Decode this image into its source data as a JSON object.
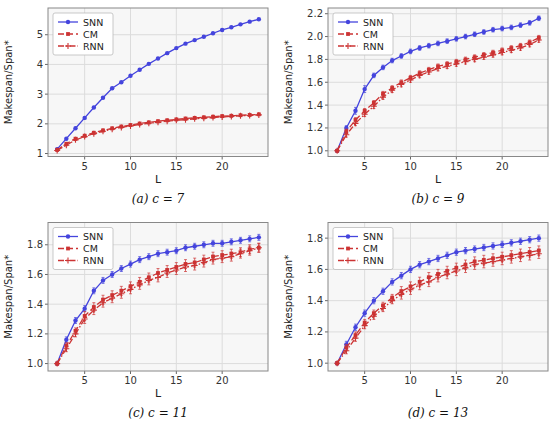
{
  "chart_data": [
    {
      "type": "line",
      "title": "(a)  c = 7",
      "xlabel": "L",
      "ylabel": "Makespan/Span*",
      "x": [
        2,
        3,
        4,
        5,
        6,
        7,
        8,
        9,
        10,
        11,
        12,
        13,
        14,
        15,
        16,
        17,
        18,
        19,
        20,
        21,
        22,
        23,
        24
      ],
      "xlim": [
        1,
        25
      ],
      "xticks": [
        5,
        10,
        15,
        20
      ],
      "ylim": [
        0.9,
        5.9
      ],
      "yticks": [
        1,
        2,
        3,
        4,
        5
      ],
      "grid": true,
      "legend": "upper-left",
      "series": [
        {
          "name": "SNN",
          "color": "#4444dd",
          "marker": "circle",
          "line_style": "solid",
          "values": [
            1.15,
            1.5,
            1.85,
            2.2,
            2.55,
            2.88,
            3.2,
            3.4,
            3.62,
            3.82,
            4.02,
            4.2,
            4.38,
            4.55,
            4.7,
            4.82,
            4.93,
            5.05,
            5.16,
            5.25,
            5.35,
            5.44,
            5.52
          ],
          "errors": [
            0.02,
            0.02,
            0.02,
            0.02,
            0.02,
            0.02,
            0.02,
            0.02,
            0.02,
            0.02,
            0.02,
            0.02,
            0.02,
            0.02,
            0.02,
            0.02,
            0.02,
            0.02,
            0.02,
            0.02,
            0.02,
            0.02,
            0.02
          ]
        },
        {
          "name": "CM",
          "color": "#cc3333",
          "marker": "square",
          "line_style": "dashed",
          "values": [
            1.12,
            1.33,
            1.5,
            1.6,
            1.7,
            1.78,
            1.85,
            1.91,
            1.96,
            2.01,
            2.05,
            2.09,
            2.12,
            2.15,
            2.18,
            2.2,
            2.22,
            2.24,
            2.26,
            2.27,
            2.29,
            2.3,
            2.32
          ],
          "errors": [
            0.02,
            0.02,
            0.02,
            0.02,
            0.02,
            0.02,
            0.02,
            0.02,
            0.02,
            0.02,
            0.02,
            0.02,
            0.02,
            0.02,
            0.02,
            0.02,
            0.02,
            0.02,
            0.02,
            0.02,
            0.02,
            0.02,
            0.02
          ]
        },
        {
          "name": "RNN",
          "color": "#cc3333",
          "marker": "plus",
          "line_style": "dashdot",
          "values": [
            1.1,
            1.28,
            1.46,
            1.57,
            1.67,
            1.75,
            1.82,
            1.88,
            1.93,
            1.98,
            2.02,
            2.05,
            2.09,
            2.12,
            2.14,
            2.17,
            2.19,
            2.21,
            2.23,
            2.25,
            2.27,
            2.28,
            2.3
          ],
          "errors": [
            0.02,
            0.02,
            0.02,
            0.02,
            0.02,
            0.02,
            0.02,
            0.02,
            0.02,
            0.02,
            0.02,
            0.02,
            0.02,
            0.02,
            0.02,
            0.02,
            0.02,
            0.02,
            0.02,
            0.02,
            0.02,
            0.02,
            0.02
          ]
        }
      ]
    },
    {
      "type": "line",
      "title": "(b)  c = 9",
      "xlabel": "L",
      "ylabel": "Makespan/Span*",
      "x": [
        2,
        3,
        4,
        5,
        6,
        7,
        8,
        9,
        10,
        11,
        12,
        13,
        14,
        15,
        16,
        17,
        18,
        19,
        20,
        21,
        22,
        23,
        24
      ],
      "xlim": [
        1,
        25
      ],
      "xticks": [
        5,
        10,
        15,
        20
      ],
      "ylim": [
        0.95,
        2.25
      ],
      "yticks": [
        {
          "value": 1.0,
          "label": "1.0"
        },
        1.2,
        1.4,
        1.6,
        1.8,
        {
          "value": 2.0,
          "label": "2.0"
        },
        2.2
      ],
      "grid": true,
      "legend": "upper-left",
      "series": [
        {
          "name": "SNN",
          "color": "#4444dd",
          "marker": "circle",
          "line_style": "solid",
          "values": [
            1.0,
            1.2,
            1.35,
            1.54,
            1.66,
            1.73,
            1.79,
            1.83,
            1.87,
            1.9,
            1.92,
            1.94,
            1.96,
            1.98,
            2.0,
            2.02,
            2.04,
            2.06,
            2.07,
            2.08,
            2.1,
            2.12,
            2.16
          ],
          "errors": [
            0.01,
            0.02,
            0.03,
            0.03,
            0.02,
            0.02,
            0.02,
            0.02,
            0.02,
            0.02,
            0.02,
            0.02,
            0.02,
            0.02,
            0.02,
            0.02,
            0.02,
            0.02,
            0.02,
            0.02,
            0.02,
            0.02,
            0.02
          ]
        },
        {
          "name": "CM",
          "color": "#cc3333",
          "marker": "square",
          "line_style": "dashed",
          "values": [
            1.0,
            1.17,
            1.27,
            1.35,
            1.42,
            1.5,
            1.55,
            1.6,
            1.64,
            1.68,
            1.71,
            1.74,
            1.76,
            1.78,
            1.8,
            1.82,
            1.84,
            1.86,
            1.88,
            1.9,
            1.92,
            1.95,
            1.99
          ],
          "errors": [
            0.01,
            0.02,
            0.02,
            0.02,
            0.02,
            0.02,
            0.02,
            0.02,
            0.02,
            0.02,
            0.02,
            0.02,
            0.02,
            0.02,
            0.02,
            0.02,
            0.02,
            0.02,
            0.02,
            0.02,
            0.02,
            0.02,
            0.02
          ]
        },
        {
          "name": "RNN",
          "color": "#cc3333",
          "marker": "plus",
          "line_style": "dashdot",
          "values": [
            1.0,
            1.14,
            1.24,
            1.32,
            1.39,
            1.47,
            1.53,
            1.58,
            1.62,
            1.66,
            1.69,
            1.72,
            1.74,
            1.76,
            1.78,
            1.8,
            1.82,
            1.84,
            1.86,
            1.88,
            1.9,
            1.93,
            1.97
          ],
          "errors": [
            0.01,
            0.02,
            0.02,
            0.02,
            0.02,
            0.02,
            0.02,
            0.02,
            0.02,
            0.02,
            0.02,
            0.02,
            0.02,
            0.02,
            0.02,
            0.02,
            0.02,
            0.02,
            0.02,
            0.02,
            0.02,
            0.02,
            0.02
          ]
        }
      ]
    },
    {
      "type": "line",
      "title": "(c)  c = 11",
      "xlabel": "L",
      "ylabel": "Makespan/Span*",
      "x": [
        2,
        3,
        4,
        5,
        6,
        7,
        8,
        9,
        10,
        11,
        12,
        13,
        14,
        15,
        16,
        17,
        18,
        19,
        20,
        21,
        22,
        23,
        24
      ],
      "xlim": [
        1,
        25
      ],
      "xticks": [
        5,
        10,
        15,
        20
      ],
      "ylim": [
        0.95,
        1.95
      ],
      "yticks": [
        {
          "value": 1.0,
          "label": "1.0"
        },
        1.2,
        1.4,
        1.6,
        1.8
      ],
      "grid": true,
      "legend": "upper-left",
      "series": [
        {
          "name": "SNN",
          "color": "#4444dd",
          "marker": "circle",
          "line_style": "solid",
          "values": [
            1.0,
            1.16,
            1.29,
            1.37,
            1.49,
            1.56,
            1.6,
            1.64,
            1.67,
            1.7,
            1.72,
            1.74,
            1.75,
            1.76,
            1.78,
            1.79,
            1.8,
            1.81,
            1.81,
            1.82,
            1.83,
            1.84,
            1.85
          ],
          "errors": [
            0.01,
            0.02,
            0.02,
            0.02,
            0.02,
            0.02,
            0.02,
            0.02,
            0.02,
            0.02,
            0.02,
            0.02,
            0.02,
            0.02,
            0.02,
            0.02,
            0.02,
            0.02,
            0.02,
            0.02,
            0.02,
            0.02,
            0.02
          ]
        },
        {
          "name": "CM",
          "color": "#cc3333",
          "marker": "square",
          "line_style": "dashed",
          "values": [
            1.0,
            1.12,
            1.22,
            1.32,
            1.38,
            1.43,
            1.46,
            1.49,
            1.52,
            1.55,
            1.58,
            1.61,
            1.63,
            1.65,
            1.67,
            1.68,
            1.7,
            1.72,
            1.73,
            1.74,
            1.75,
            1.77,
            1.78
          ],
          "errors": [
            0.01,
            0.02,
            0.02,
            0.03,
            0.03,
            0.03,
            0.03,
            0.03,
            0.03,
            0.03,
            0.03,
            0.03,
            0.03,
            0.03,
            0.03,
            0.03,
            0.03,
            0.03,
            0.03,
            0.03,
            0.03,
            0.03,
            0.03
          ]
        },
        {
          "name": "RNN",
          "color": "#cc3333",
          "marker": "plus",
          "line_style": "dashdot",
          "values": [
            1.0,
            1.1,
            1.2,
            1.3,
            1.36,
            1.41,
            1.44,
            1.47,
            1.5,
            1.53,
            1.56,
            1.58,
            1.61,
            1.63,
            1.65,
            1.66,
            1.68,
            1.7,
            1.71,
            1.72,
            1.74,
            1.76,
            1.78
          ],
          "errors": [
            0.01,
            0.02,
            0.02,
            0.03,
            0.03,
            0.03,
            0.03,
            0.03,
            0.03,
            0.03,
            0.03,
            0.03,
            0.03,
            0.03,
            0.03,
            0.03,
            0.03,
            0.03,
            0.03,
            0.03,
            0.03,
            0.03,
            0.03
          ]
        }
      ]
    },
    {
      "type": "line",
      "title": "(d)  c = 13",
      "xlabel": "L",
      "ylabel": "Makespan/Span*",
      "x": [
        2,
        3,
        4,
        5,
        6,
        7,
        8,
        9,
        10,
        11,
        12,
        13,
        14,
        15,
        16,
        17,
        18,
        19,
        20,
        21,
        22,
        23,
        24
      ],
      "xlim": [
        1,
        25
      ],
      "xticks": [
        5,
        10,
        15,
        20
      ],
      "ylim": [
        0.95,
        1.9
      ],
      "yticks": [
        {
          "value": 1.0,
          "label": "1.0"
        },
        1.2,
        1.4,
        1.6,
        1.8
      ],
      "grid": true,
      "legend": "upper-left",
      "series": [
        {
          "name": "SNN",
          "color": "#4444dd",
          "marker": "circle",
          "line_style": "solid",
          "values": [
            1.0,
            1.12,
            1.23,
            1.32,
            1.4,
            1.46,
            1.52,
            1.56,
            1.6,
            1.63,
            1.65,
            1.67,
            1.69,
            1.71,
            1.72,
            1.73,
            1.74,
            1.75,
            1.76,
            1.77,
            1.78,
            1.79,
            1.8
          ],
          "errors": [
            0.01,
            0.02,
            0.02,
            0.02,
            0.02,
            0.02,
            0.02,
            0.02,
            0.02,
            0.02,
            0.02,
            0.02,
            0.02,
            0.02,
            0.02,
            0.02,
            0.02,
            0.02,
            0.02,
            0.02,
            0.02,
            0.02,
            0.02
          ]
        },
        {
          "name": "CM",
          "color": "#cc3333",
          "marker": "square",
          "line_style": "dashed",
          "values": [
            1.0,
            1.1,
            1.18,
            1.26,
            1.32,
            1.37,
            1.42,
            1.46,
            1.49,
            1.52,
            1.55,
            1.57,
            1.59,
            1.61,
            1.63,
            1.65,
            1.66,
            1.67,
            1.68,
            1.69,
            1.7,
            1.71,
            1.72
          ],
          "errors": [
            0.01,
            0.02,
            0.02,
            0.02,
            0.02,
            0.02,
            0.02,
            0.03,
            0.03,
            0.03,
            0.03,
            0.03,
            0.03,
            0.03,
            0.03,
            0.03,
            0.03,
            0.03,
            0.03,
            0.03,
            0.03,
            0.03,
            0.03
          ]
        },
        {
          "name": "RNN",
          "color": "#cc3333",
          "marker": "plus",
          "line_style": "dashdot",
          "values": [
            1.0,
            1.08,
            1.16,
            1.24,
            1.3,
            1.35,
            1.4,
            1.44,
            1.47,
            1.5,
            1.52,
            1.55,
            1.57,
            1.59,
            1.61,
            1.63,
            1.64,
            1.65,
            1.66,
            1.67,
            1.68,
            1.69,
            1.7
          ],
          "errors": [
            0.01,
            0.02,
            0.02,
            0.02,
            0.02,
            0.02,
            0.02,
            0.03,
            0.03,
            0.03,
            0.03,
            0.03,
            0.03,
            0.03,
            0.03,
            0.03,
            0.03,
            0.03,
            0.03,
            0.03,
            0.03,
            0.03,
            0.03
          ]
        }
      ]
    }
  ]
}
